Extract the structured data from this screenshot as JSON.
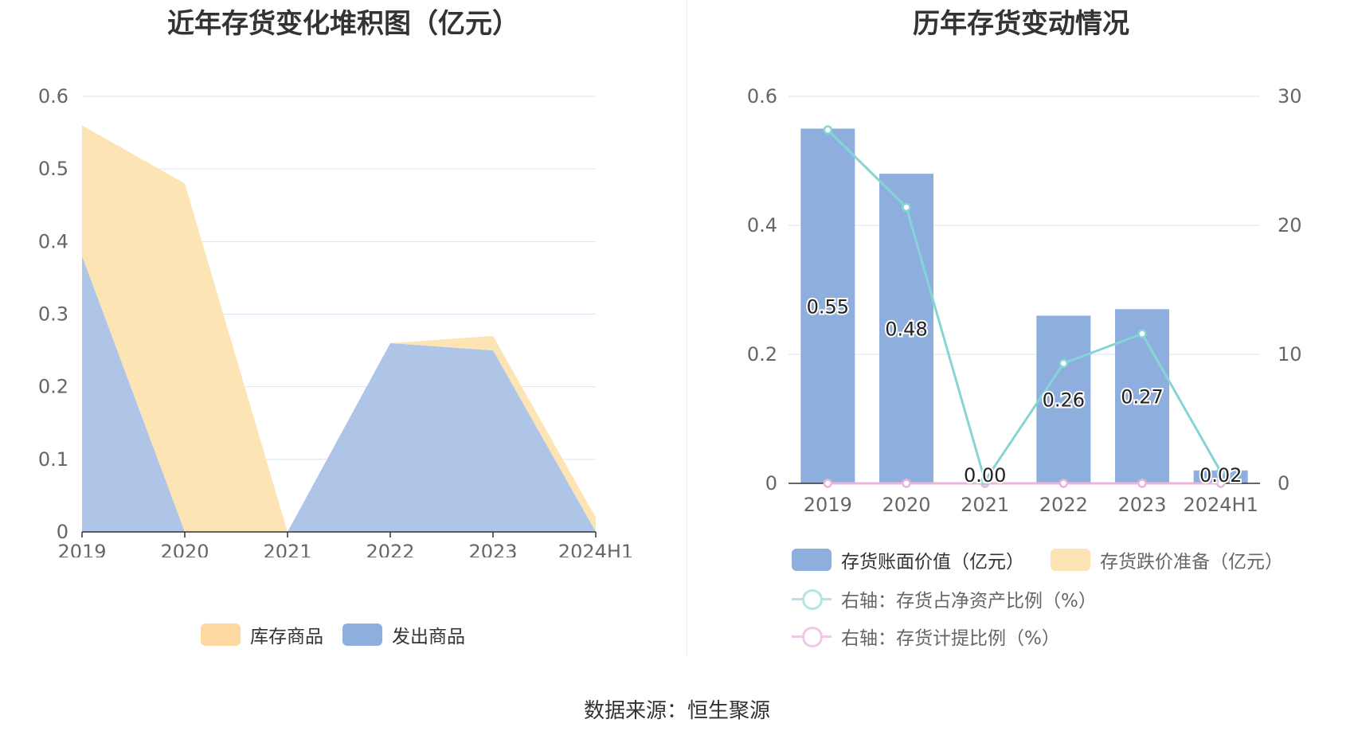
{
  "left": {
    "title": "近年存货变化堆积图（亿元）",
    "legend": [
      "库存商品",
      "发出商品"
    ]
  },
  "right": {
    "title": "历年存货变动情况",
    "legend": [
      "存货账面价值（亿元）",
      "存货跌价准备（亿元）",
      "右轴：存货占净资产比例（%）",
      "右轴：存货计提比例（%）"
    ]
  },
  "source": "数据来源：恒生聚源",
  "colors": {
    "inventory": "#fde4b5",
    "shipped": "#afc5e7",
    "bar": "#8eaedd",
    "ratio_line": "#86d4d6",
    "provision_line": "#e8b4dc",
    "grid": "#dde3f3"
  },
  "chart_data": [
    {
      "type": "area",
      "title": "近年存货变化堆积图（亿元）",
      "categories": [
        "2019",
        "2020",
        "2021",
        "2022",
        "2023",
        "2024H1"
      ],
      "stacked": true,
      "ylim": [
        0,
        0.6
      ],
      "yticks": [
        "0",
        "0.1",
        "0.2",
        "0.3",
        "0.4",
        "0.5",
        "0.6"
      ],
      "series": [
        {
          "name": "发出商品",
          "values": [
            0.38,
            0,
            0,
            0.26,
            0.25,
            0
          ]
        },
        {
          "name": "库存商品",
          "values": [
            0.18,
            0.48,
            0,
            0,
            0.02,
            0.02
          ]
        }
      ],
      "legend_position": "bottom",
      "grid": true
    },
    {
      "type": "bar",
      "title": "历年存货变动情况",
      "categories": [
        "2019",
        "2020",
        "2021",
        "2022",
        "2023",
        "2024H1"
      ],
      "ylim": [
        0,
        0.6
      ],
      "yticks": [
        "0",
        "0.2",
        "0.4",
        "0.6"
      ],
      "y2lim": [
        0,
        30
      ],
      "y2ticks": [
        "0",
        "10",
        "20",
        "30"
      ],
      "series": [
        {
          "name": "存货账面价值（亿元）",
          "type": "bar",
          "axis": "left",
          "values": [
            0.55,
            0.48,
            0.0,
            0.26,
            0.27,
            0.02
          ],
          "labels": [
            "0.55",
            "0.48",
            "0.00",
            "0.26",
            "0.27",
            "0.02"
          ]
        },
        {
          "name": "存货跌价准备（亿元）",
          "type": "bar",
          "axis": "left",
          "values": [
            0,
            0,
            0,
            0,
            0,
            0
          ]
        },
        {
          "name": "右轴：存货占净资产比例（%）",
          "type": "line",
          "axis": "right",
          "values": [
            27.4,
            21.4,
            0.2,
            9.3,
            11.6,
            0.9
          ]
        },
        {
          "name": "右轴：存货计提比例（%）",
          "type": "line",
          "axis": "right",
          "values": [
            0,
            0,
            0,
            0,
            0,
            0
          ]
        }
      ],
      "legend_position": "bottom",
      "grid": true
    }
  ]
}
